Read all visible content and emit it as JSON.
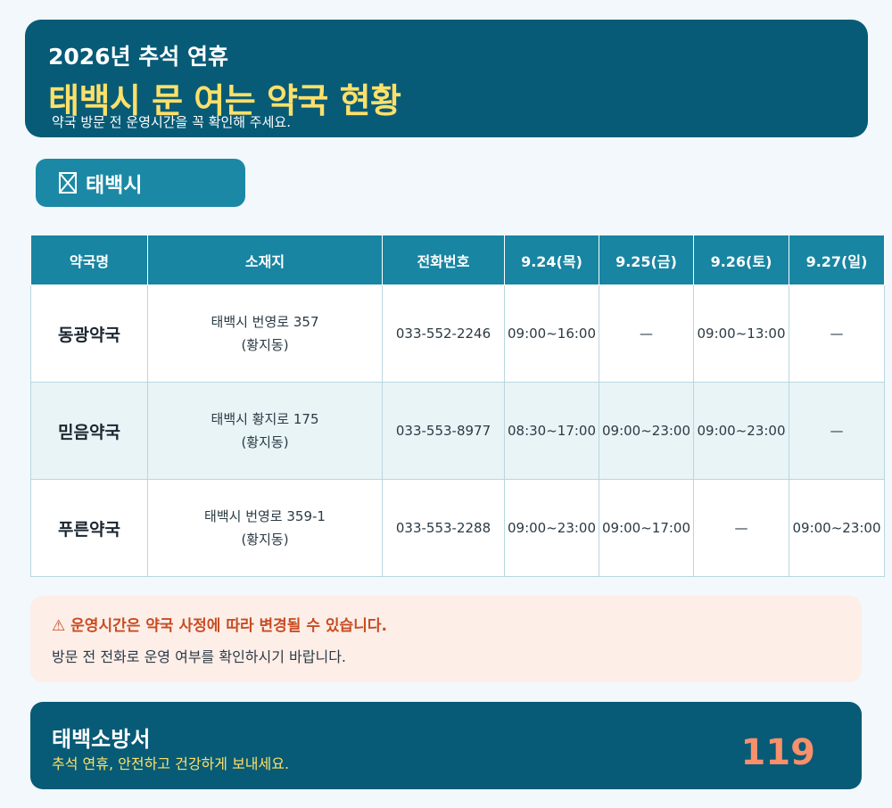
{
  "header": {
    "subtitle": "2026년 추석 연휴",
    "title": "태백시 문 여는 약국 현황",
    "notice": "약국 방문 전 운영시간을 꼭 확인해 주세요."
  },
  "region": {
    "icon": "pin-icon",
    "label": "태백시"
  },
  "table": {
    "headers": [
      "약국명",
      "소재지",
      "전화번호",
      "9.24(목)",
      "9.25(금)",
      "9.26(토)",
      "9.27(일)"
    ],
    "rows": [
      {
        "name": "동광약국",
        "address_line1": "태백시 번영로 357",
        "address_line2": "(황지동)",
        "phone": "033-552-2246",
        "hours": [
          "09:00~16:00",
          "—",
          "09:00~13:00",
          "—"
        ]
      },
      {
        "name": "믿음약국",
        "address_line1": "태백시 황지로 175",
        "address_line2": "(황지동)",
        "phone": "033-553-8977",
        "hours": [
          "08:30~17:00",
          "09:00~23:00",
          "09:00~23:00",
          "—"
        ]
      },
      {
        "name": "푸른약국",
        "address_line1": "태백시 번영로 359-1",
        "address_line2": "(황지동)",
        "phone": "033-553-2288",
        "hours": [
          "09:00~23:00",
          "09:00~17:00",
          "—",
          "09:00~23:00"
        ]
      }
    ]
  },
  "warning": {
    "icon": "warning-triangle-icon",
    "title": "⚠ 운영시간은 약국 사정에 따라 변경될 수 있습니다.",
    "body": "방문 전 전화로 운영 여부를 확인하시기 바랍니다."
  },
  "footer": {
    "org": "태백소방서",
    "greeting": "추석 연휴, 안전하고 건강하게 보내세요.",
    "emergency_number": "119"
  },
  "colors": {
    "header_bg": "#075b76",
    "title_yellow": "#fde06a",
    "table_header_bg": "#1885a2",
    "warning_text": "#c84c23",
    "emergency_number": "#f7906b"
  }
}
